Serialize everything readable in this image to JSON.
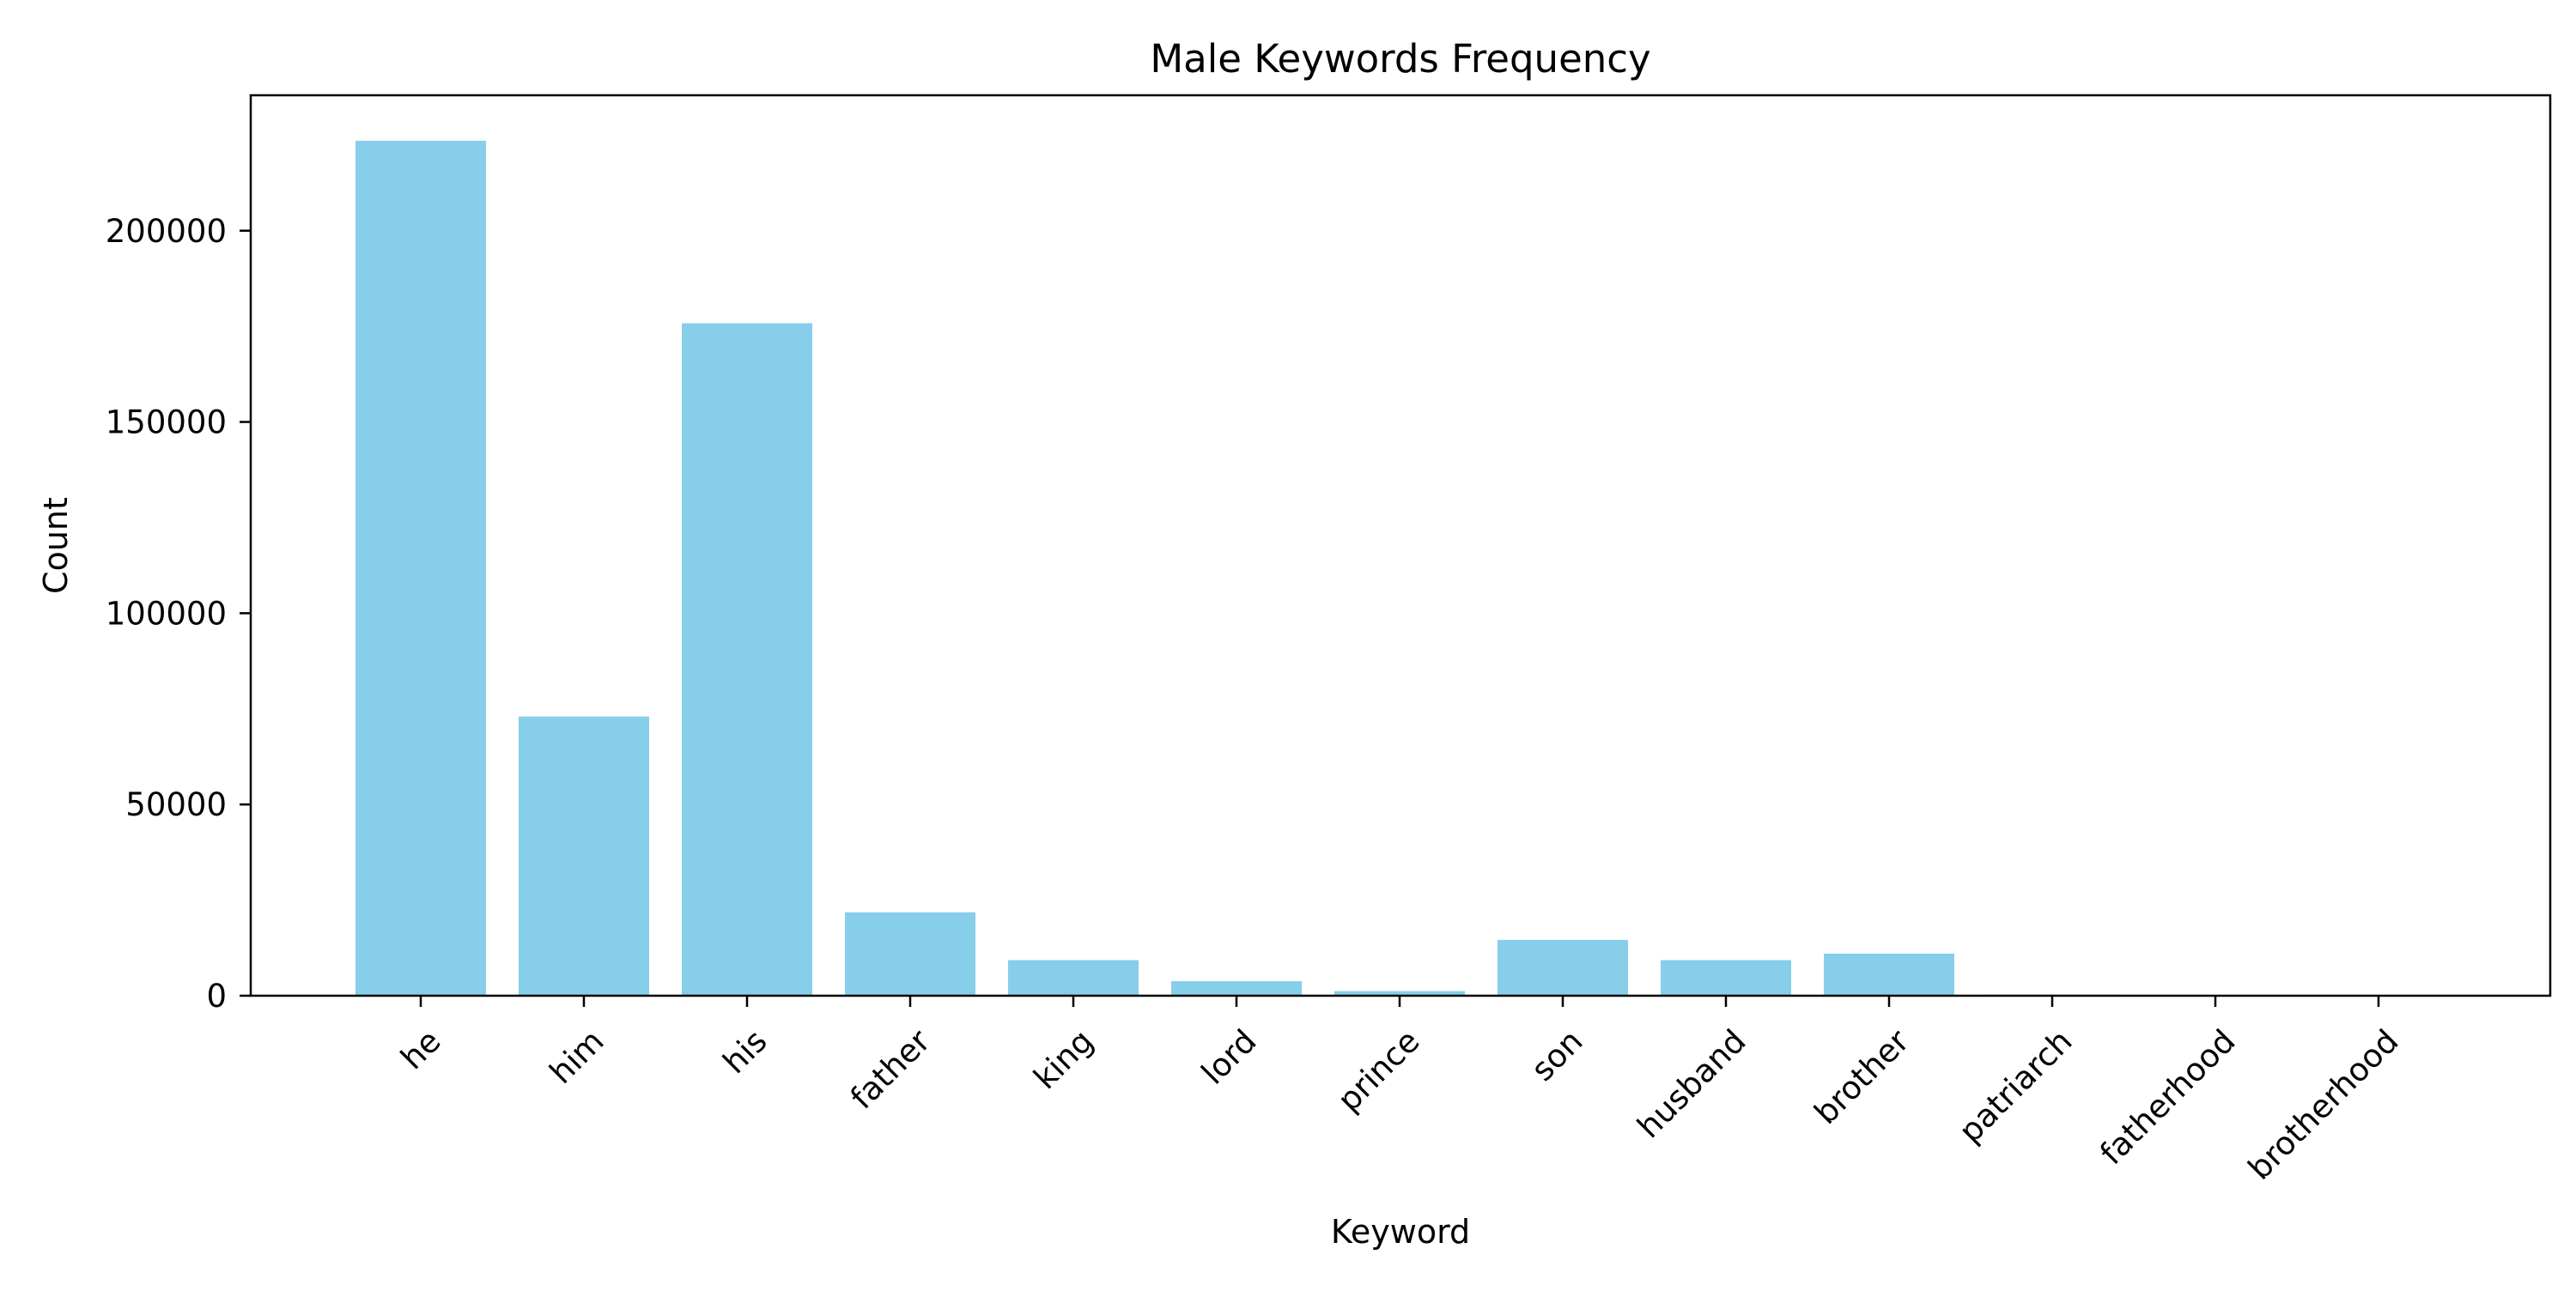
{
  "chart_data": {
    "type": "bar",
    "title": "Male Keywords Frequency",
    "xlabel": "Keyword",
    "ylabel": "Count",
    "categories": [
      "he",
      "him",
      "his",
      "father",
      "king",
      "lord",
      "prince",
      "son",
      "husband",
      "brother",
      "patriarch",
      "fatherhood",
      "brotherhood"
    ],
    "values": [
      223500,
      73000,
      175800,
      21800,
      9300,
      3800,
      1200,
      14600,
      9300,
      11000,
      300,
      50,
      40
    ],
    "ylim": [
      0,
      235400
    ],
    "yticks": [
      0,
      50000,
      100000,
      150000,
      200000
    ],
    "ytick_labels": [
      "0",
      "50000",
      "100000",
      "150000",
      "200000"
    ],
    "x_tick_rotation": "45 degrees",
    "bar_color": "#87ceeb",
    "grid": false,
    "legend": false
  }
}
